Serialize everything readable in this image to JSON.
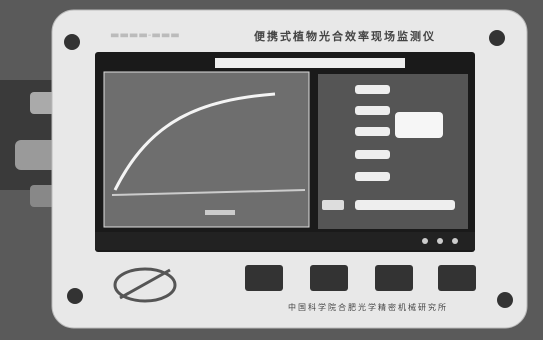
{
  "device": {
    "title": "便携式植物光合效率现场监测仪",
    "maker": "中国科学院合肥光学精密机械研究所"
  }
}
